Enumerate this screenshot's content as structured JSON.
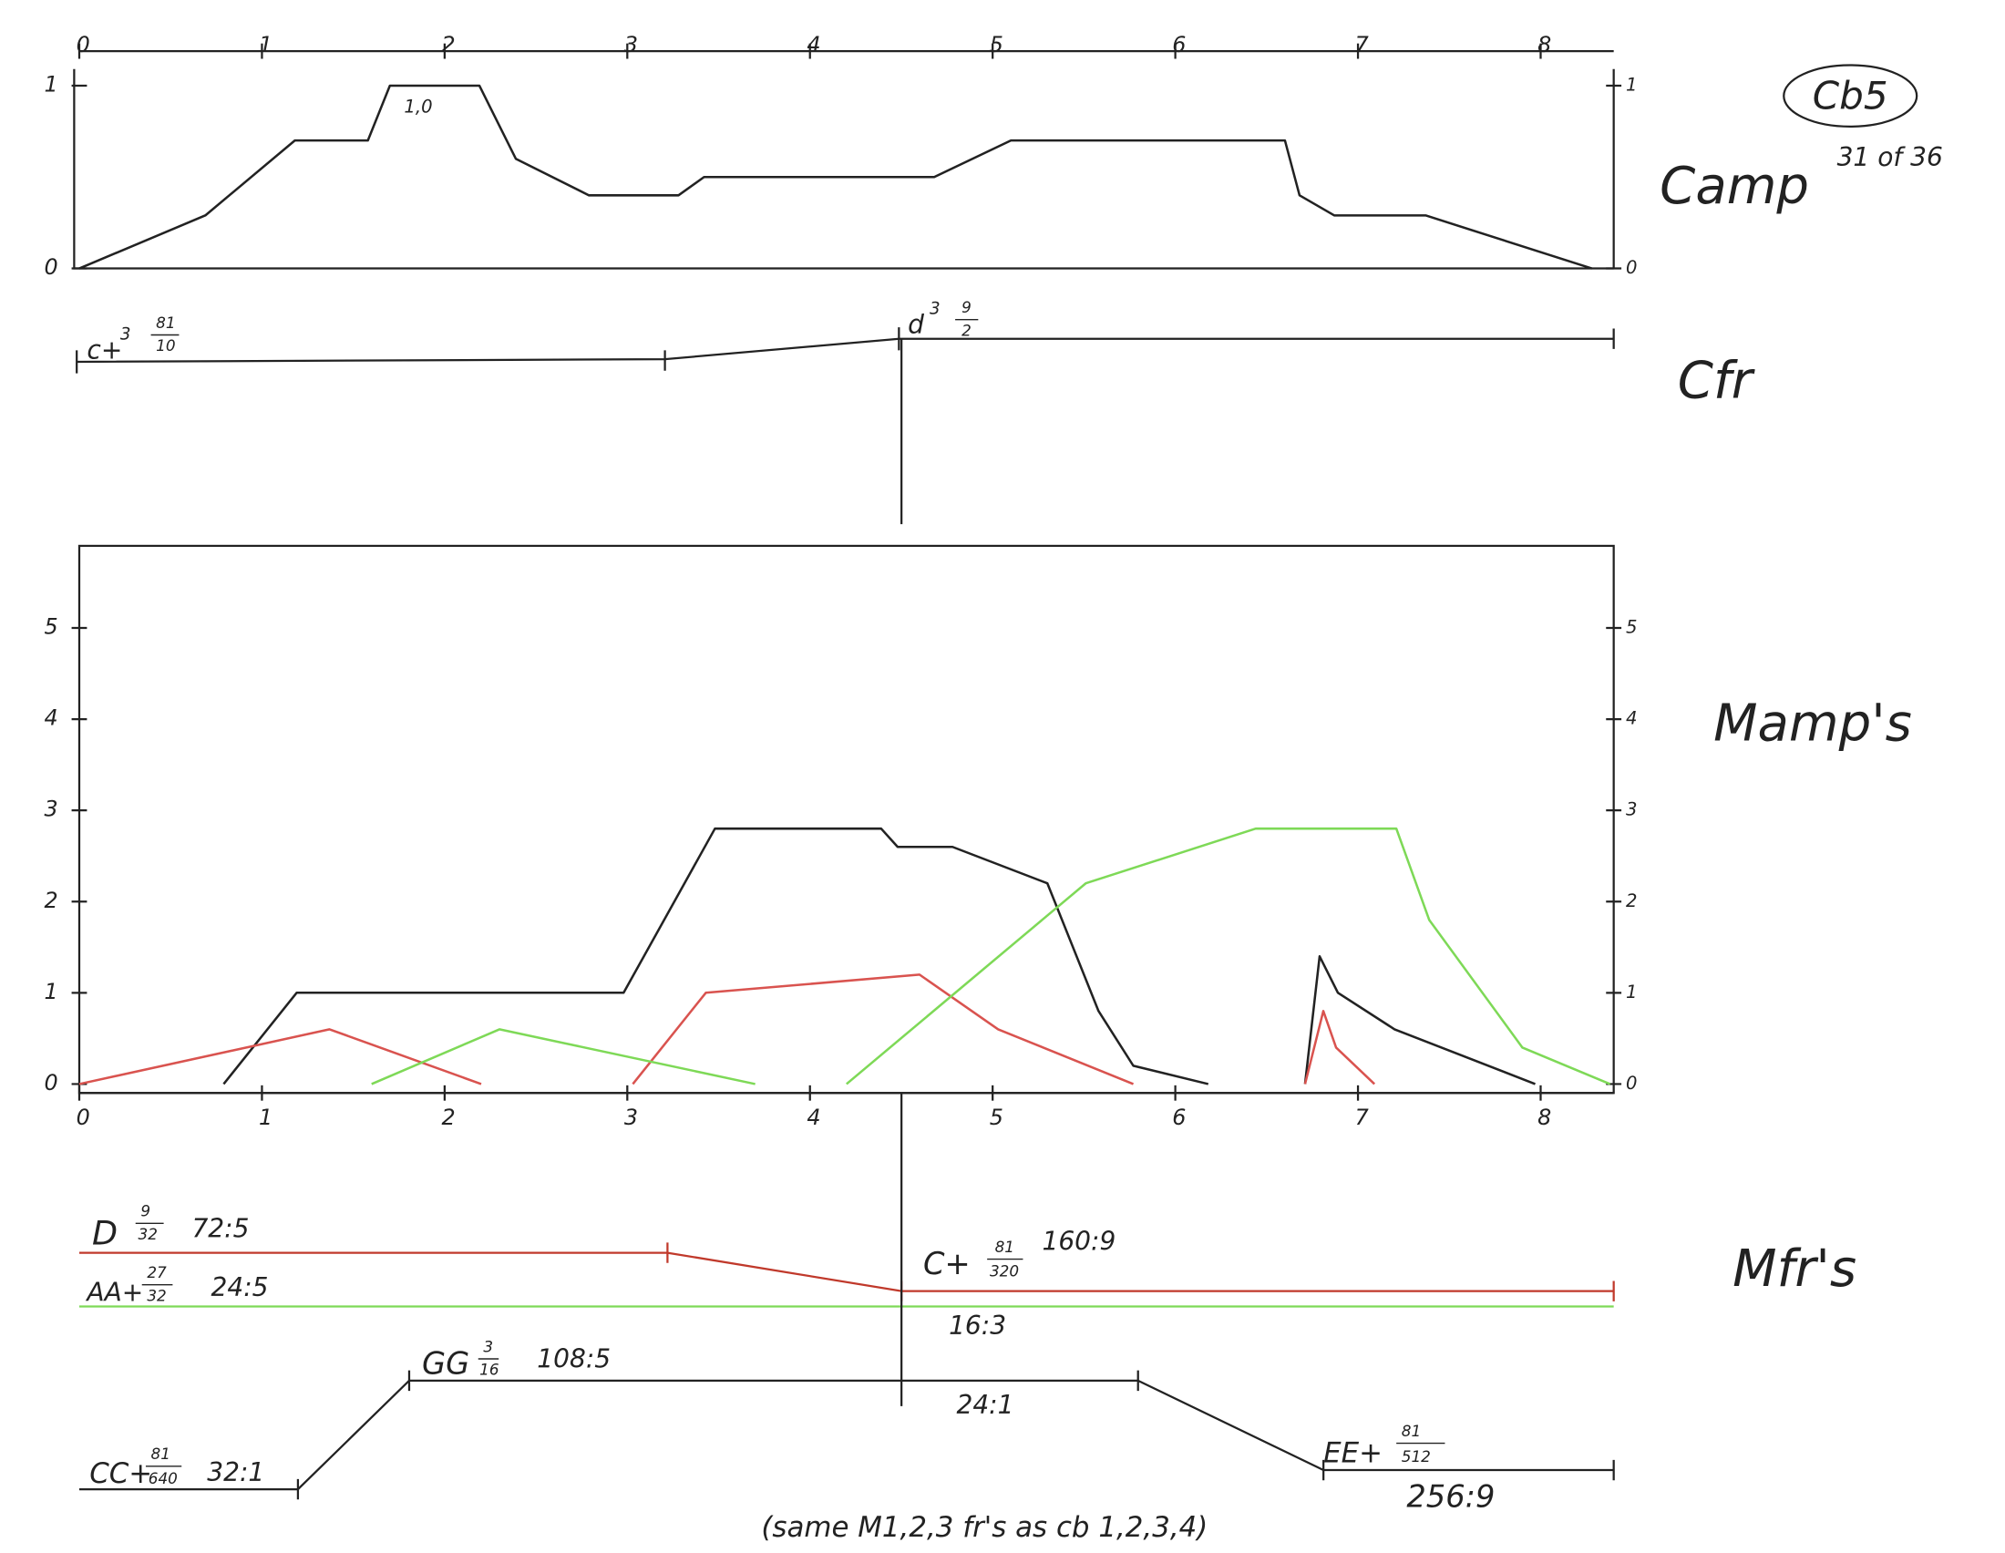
{
  "header": {
    "id": "Cb5",
    "page": "31 of 36"
  },
  "chart_data": [
    {
      "type": "line",
      "title": "Camp",
      "annotation": "1,0",
      "xlim": [
        0,
        8.4
      ],
      "xticks": [
        0,
        1,
        2,
        3,
        4,
        5,
        6,
        7,
        8
      ],
      "ylim": [
        0,
        1
      ],
      "yticks": [
        0,
        1
      ],
      "series": [
        {
          "color": "#222222",
          "x": [
            0,
            0.69,
            1.18,
            1.58,
            1.7,
            2.19,
            2.39,
            2.79,
            3.28,
            3.42,
            4.68,
            5.1,
            6.6,
            6.68,
            6.87,
            7.37,
            8.28
          ],
          "values": [
            0,
            0.29,
            0.7,
            0.7,
            1,
            1,
            0.6,
            0.4,
            0.4,
            0.5,
            0.5,
            0.7,
            0.7,
            0.4,
            0.29,
            0.29,
            0
          ]
        }
      ]
    },
    {
      "type": "line",
      "title": "Mamp's",
      "xlim": [
        0,
        8.4
      ],
      "xticks": [
        0,
        1,
        2,
        3,
        4,
        5,
        6,
        7,
        8
      ],
      "ylim": [
        0,
        5.9
      ],
      "yticks": [
        0,
        1,
        2,
        3,
        4,
        5
      ],
      "series": [
        {
          "color": "#222222",
          "x": [
            0.79,
            1.19,
            2.98,
            3.48,
            4.39,
            4.48,
            4.78,
            5.3,
            5.58,
            5.77,
            6.18,
            null,
            6.71,
            6.79,
            6.89,
            7.2,
            7.97
          ],
          "values": [
            0,
            1,
            1,
            2.8,
            2.8,
            2.6,
            2.6,
            2.2,
            0.8,
            0.2,
            0,
            null,
            0,
            1.4,
            1,
            0.6,
            0
          ]
        },
        {
          "color": "#d9534f",
          "x": [
            0,
            1.37,
            2.2,
            null,
            3.03,
            3.43,
            4.6,
            5.03,
            5.77,
            null,
            6.71,
            6.81,
            6.88,
            7.09
          ],
          "values": [
            0,
            0.6,
            0,
            null,
            0,
            1,
            1.2,
            0.6,
            0,
            null,
            0,
            0.8,
            0.4,
            0
          ]
        },
        {
          "color": "#7ed957",
          "x": [
            1.6,
            2.3,
            3.7,
            null,
            4.2,
            5.51,
            6.44,
            7.21,
            7.39,
            7.9,
            8.38
          ],
          "values": [
            0,
            0.6,
            0,
            null,
            0,
            2.2,
            2.8,
            2.8,
            1.8,
            0.4,
            0
          ]
        }
      ]
    }
  ],
  "cfr": {
    "label": "Cfr",
    "notes": [
      {
        "name": "c+",
        "octave": "3",
        "num": "81",
        "den": "10"
      },
      {
        "name": "d",
        "octave": "3",
        "num": "9",
        "den": "2"
      }
    ]
  },
  "mfr": {
    "label": "Mfr's",
    "notes": [
      {
        "name": "D",
        "num": "9",
        "den": "32",
        "ratio": "72:5"
      },
      {
        "name": "C+",
        "num": "81",
        "den": "320",
        "ratio": "160:9"
      },
      {
        "name": "AA+",
        "num": "27",
        "den": "32",
        "ratio": "24:5"
      },
      {
        "name": "GG",
        "num": "3",
        "den": "16",
        "ratio": "108:5"
      },
      {
        "name": "CC+",
        "num": "81",
        "den": "640",
        "ratio": "32:1"
      },
      {
        "name": "EE+",
        "num": "81",
        "den": "512"
      }
    ],
    "ratios": [
      "16:3",
      "24:1",
      "256:9"
    ]
  },
  "footer": "(same M1,2,3 fr's as cb 1,2,3,4)"
}
